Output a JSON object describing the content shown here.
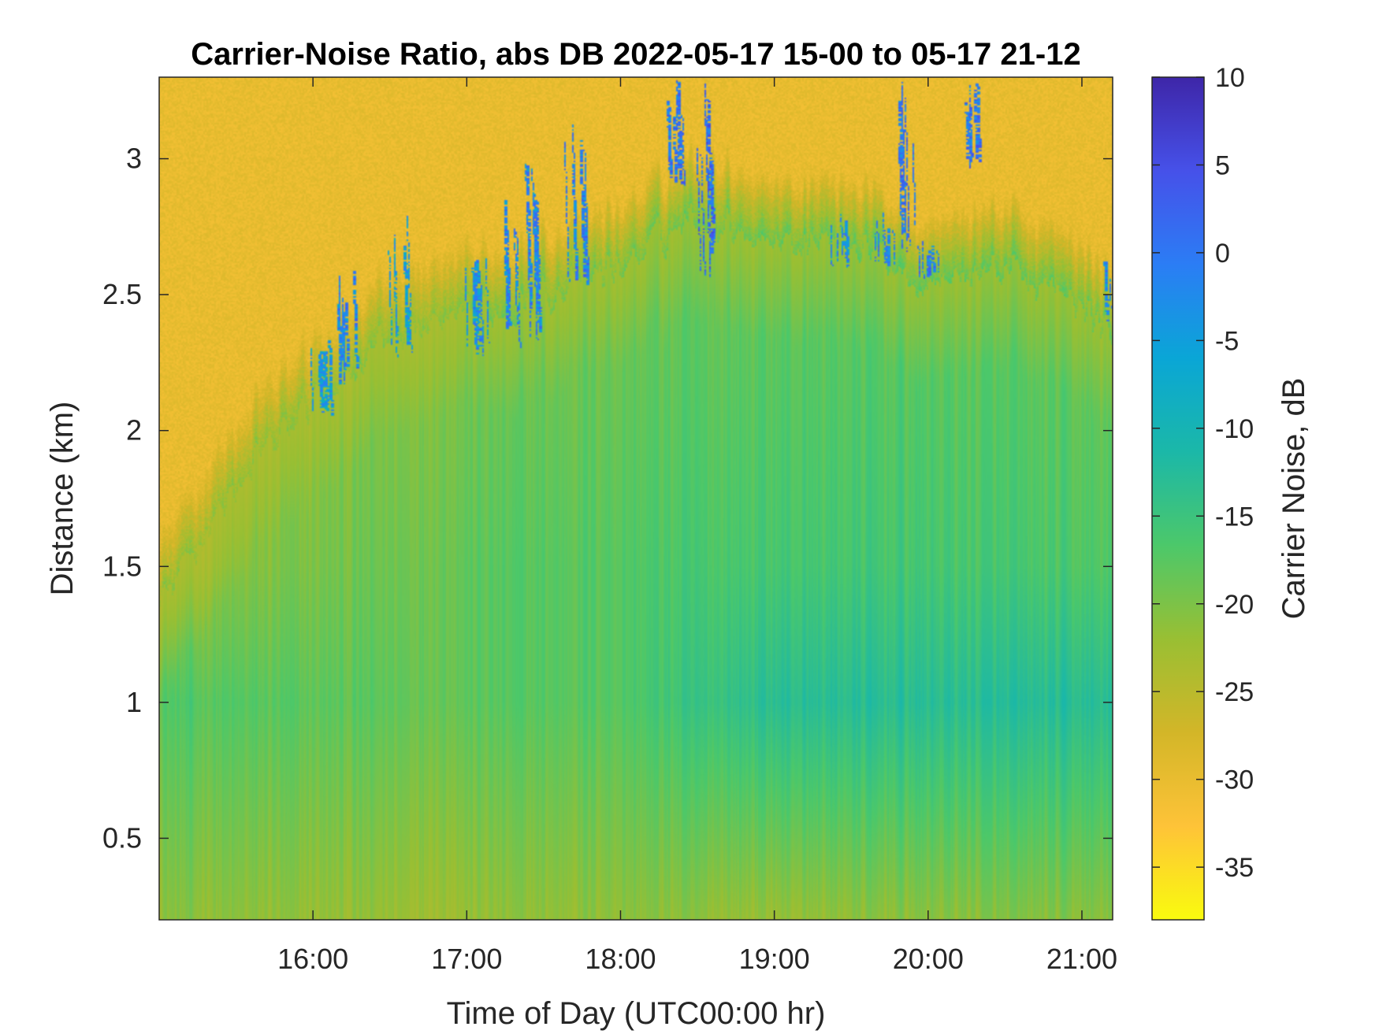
{
  "chart_data": {
    "type": "heatmap",
    "title": "Carrier-Noise Ratio, abs DB 2022-05-17 15-00 to 05-17 21-12",
    "xlabel": "Time of Day (UTC00:00 hr)",
    "ylabel": "Distance (km)",
    "colorbar_label": "Carrier Noise, dB",
    "xlim_hours": [
      15.0,
      21.2
    ],
    "ylim_km": [
      0.2,
      3.3
    ],
    "clim_db": [
      -38,
      10
    ],
    "x_ticks": [
      {
        "value": 16,
        "label": "16:00"
      },
      {
        "value": 17,
        "label": "17:00"
      },
      {
        "value": 18,
        "label": "18:00"
      },
      {
        "value": 19,
        "label": "19:00"
      },
      {
        "value": 20,
        "label": "20:00"
      },
      {
        "value": 21,
        "label": "21:00"
      }
    ],
    "y_ticks": [
      {
        "value": 0.5,
        "label": "0.5"
      },
      {
        "value": 1,
        "label": "1"
      },
      {
        "value": 1.5,
        "label": "1.5"
      },
      {
        "value": 2,
        "label": "2"
      },
      {
        "value": 2.5,
        "label": "2.5"
      },
      {
        "value": 3,
        "label": "3"
      }
    ],
    "colorbar_ticks": [
      {
        "value": 10,
        "label": "10"
      },
      {
        "value": 5,
        "label": "5"
      },
      {
        "value": 0,
        "label": "0"
      },
      {
        "value": -5,
        "label": "-5"
      },
      {
        "value": -10,
        "label": "-10"
      },
      {
        "value": -15,
        "label": "-15"
      },
      {
        "value": -20,
        "label": "-20"
      },
      {
        "value": -25,
        "label": "-25"
      },
      {
        "value": -30,
        "label": "-30"
      },
      {
        "value": -35,
        "label": "-35"
      }
    ],
    "colormap": [
      "#f9fb0e",
      "#fec338",
      "#d3b628",
      "#99bf33",
      "#4cc86a",
      "#1bb8a8",
      "#0aa6d6",
      "#2b7df5",
      "#4651e9",
      "#3e26a8"
    ],
    "noise_floor_db": -30,
    "boundary_layer_top_km": [
      [
        15.0,
        1.35
      ],
      [
        15.5,
        1.8
      ],
      [
        16.0,
        2.1
      ],
      [
        16.5,
        2.35
      ],
      [
        17.0,
        2.4
      ],
      [
        17.5,
        2.5
      ],
      [
        18.0,
        2.6
      ],
      [
        18.5,
        2.8
      ],
      [
        19.0,
        2.7
      ],
      [
        19.5,
        2.7
      ],
      [
        20.0,
        2.55
      ],
      [
        20.5,
        2.6
      ],
      [
        21.0,
        2.45
      ],
      [
        21.2,
        2.35
      ]
    ],
    "column_profiles_db": [
      {
        "time": 15.0,
        "near_ground": -21,
        "at_1km": -17,
        "at_1_5km": -22
      },
      {
        "time": 16.0,
        "near_ground": -22,
        "at_1km": -18,
        "at_1_5km": -20
      },
      {
        "time": 17.0,
        "near_ground": -22,
        "at_1km": -18,
        "at_1_5km": -18
      },
      {
        "time": 18.0,
        "near_ground": -21,
        "at_1km": -17,
        "at_1_5km": -17
      },
      {
        "time": 19.0,
        "near_ground": -22,
        "at_1km": -13,
        "at_1_5km": -16
      },
      {
        "time": 20.0,
        "near_ground": -21,
        "at_1km": -13,
        "at_1_5km": -16
      },
      {
        "time": 21.0,
        "near_ground": -21,
        "at_1km": -13,
        "at_1_5km": -17
      }
    ],
    "cloud_returns": [
      {
        "time": 16.05,
        "from_km": 2.05,
        "to_km": 2.35,
        "peak_db": 0
      },
      {
        "time": 16.2,
        "from_km": 2.15,
        "to_km": 2.6,
        "peak_db": 3
      },
      {
        "time": 16.55,
        "from_km": 2.25,
        "to_km": 2.85,
        "peak_db": 0
      },
      {
        "time": 17.05,
        "from_km": 2.25,
        "to_km": 2.65,
        "peak_db": 2
      },
      {
        "time": 17.3,
        "from_km": 2.3,
        "to_km": 2.85,
        "peak_db": 3
      },
      {
        "time": 17.45,
        "from_km": 2.3,
        "to_km": 3.05,
        "peak_db": 3
      },
      {
        "time": 17.7,
        "from_km": 2.5,
        "to_km": 3.15,
        "peak_db": 4
      },
      {
        "time": 18.35,
        "from_km": 2.9,
        "to_km": 3.3,
        "peak_db": 5
      },
      {
        "time": 18.55,
        "from_km": 2.55,
        "to_km": 3.3,
        "peak_db": 6
      },
      {
        "time": 19.4,
        "from_km": 2.6,
        "to_km": 2.8,
        "peak_db": 2
      },
      {
        "time": 19.7,
        "from_km": 2.6,
        "to_km": 2.8,
        "peak_db": 3
      },
      {
        "time": 19.85,
        "from_km": 2.65,
        "to_km": 3.3,
        "peak_db": 5
      },
      {
        "time": 20.0,
        "from_km": 2.55,
        "to_km": 2.7,
        "peak_db": 4
      },
      {
        "time": 20.25,
        "from_km": 2.95,
        "to_km": 3.3,
        "peak_db": 5
      },
      {
        "time": 21.2,
        "from_km": 2.4,
        "to_km": 2.65,
        "peak_db": 2
      }
    ]
  }
}
